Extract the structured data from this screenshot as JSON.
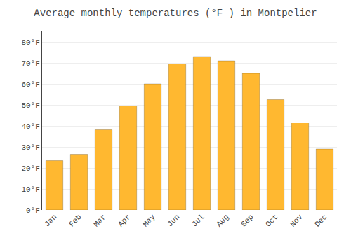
{
  "chart_data": {
    "type": "bar",
    "title": "Average monthly temperatures (°F ) in Montpelier",
    "categories": [
      "Jan",
      "Feb",
      "Mar",
      "Apr",
      "May",
      "Jun",
      "Jul",
      "Aug",
      "Sep",
      "Oct",
      "Nov",
      "Dec"
    ],
    "values": [
      23.5,
      26.5,
      38.5,
      49.5,
      60.0,
      69.5,
      73.0,
      71.0,
      65.0,
      52.5,
      41.5,
      29.0
    ],
    "color": "#FFB830",
    "ylim": [
      0,
      85
    ],
    "yticks": [
      {
        "value": 0,
        "label": "0°F"
      },
      {
        "value": 10,
        "label": "10°F"
      },
      {
        "value": 20,
        "label": "20°F"
      },
      {
        "value": 30,
        "label": "30°F"
      },
      {
        "value": 40,
        "label": "40°F"
      },
      {
        "value": 50,
        "label": "50°F"
      },
      {
        "value": 60,
        "label": "60°F"
      },
      {
        "value": 70,
        "label": "70°F"
      },
      {
        "value": 80,
        "label": "80°F"
      }
    ],
    "grid": true
  }
}
